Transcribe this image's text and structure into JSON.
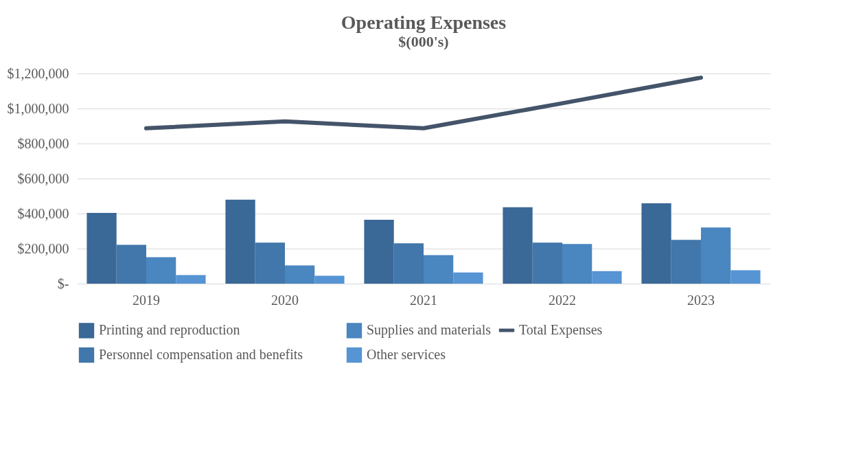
{
  "chart_data": {
    "type": "bar",
    "title": "Operating Expenses",
    "subtitle": "$(000's)",
    "categories": [
      "2019",
      "2020",
      "2021",
      "2022",
      "2023"
    ],
    "series": [
      {
        "name": "Printing and reproduction",
        "color": "#3a6897",
        "values": [
          404000,
          479000,
          365000,
          436000,
          459000
        ]
      },
      {
        "name": "Personnel compensation and benefits",
        "color": "#4177aa",
        "values": [
          222000,
          234000,
          230000,
          234000,
          250000
        ]
      },
      {
        "name": "Supplies and materials",
        "color": "#4a86c0",
        "values": [
          151000,
          104000,
          163000,
          226000,
          321000
        ]
      },
      {
        "name": "Other services",
        "color": "#5694d4",
        "values": [
          49000,
          45000,
          64000,
          72000,
          76000
        ]
      },
      {
        "name": "Total Expenses",
        "type": "line",
        "color": "#44546a",
        "values": [
          887000,
          926000,
          887000,
          1030000,
          1176000
        ]
      }
    ],
    "ylim": [
      0,
      1200000
    ],
    "yticks": [
      {
        "value": 0,
        "label": "$-"
      },
      {
        "value": 200000,
        "label": "$200,000"
      },
      {
        "value": 400000,
        "label": "$400,000"
      },
      {
        "value": 600000,
        "label": "$600,000"
      },
      {
        "value": 800000,
        "label": "$800,000"
      },
      {
        "value": 1000000,
        "label": "$1,000,000"
      },
      {
        "value": 1200000,
        "label": "$1,200,000"
      }
    ],
    "grid": "y",
    "legend": "bottom"
  }
}
